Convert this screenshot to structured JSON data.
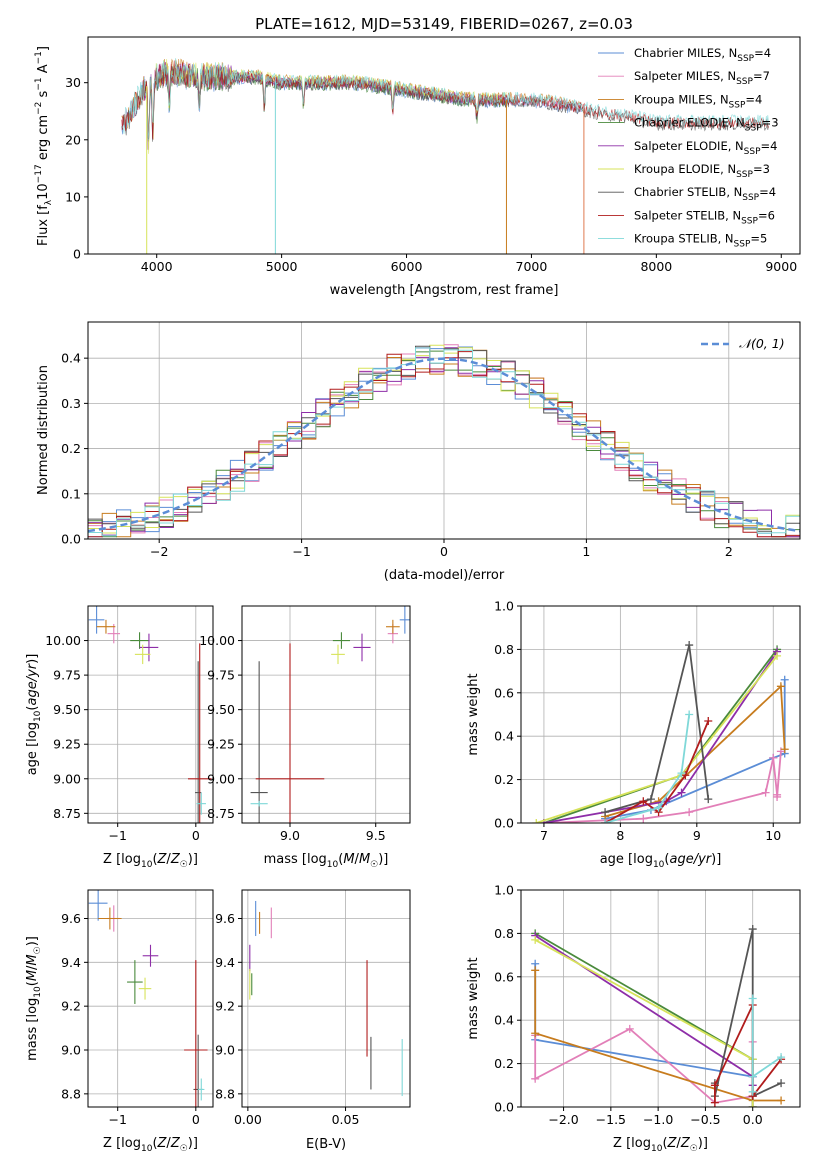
{
  "title": "PLATE=1612, MJD=53149, FIBERID=0267, z=0.03",
  "colors": {
    "Chabrier MILES": "#5b8dd6",
    "Salpeter MILES": "#e27fb8",
    "Kroupa MILES": "#c77c1e",
    "Chabrier ELODIE": "#4a8a3c",
    "Salpeter ELODIE": "#8e2ea8",
    "Kroupa ELODIE": "#d7e35a",
    "Chabrier STELIB": "#555555",
    "Salpeter STELIB": "#b01c1c",
    "Kroupa STELIB": "#7fd8d8"
  },
  "chart_data": [
    {
      "id": "spectrum",
      "type": "line",
      "title": "PLATE=1612, MJD=53149, FIBERID=0267, z=0.03",
      "xlabel": "wavelength [Angstrom, rest frame]",
      "ylabel": "Flux [f_λ 10^-17 erg cm^-2 s^-1 A^-1]",
      "xlim": [
        3450,
        9150
      ],
      "ylim": [
        0,
        38
      ],
      "xticks": [
        4000,
        5000,
        6000,
        7000,
        8000,
        9000
      ],
      "yticks": [
        0,
        10,
        20,
        30
      ],
      "grid": false,
      "legend_position": "top-right",
      "x": [
        3720,
        3800,
        3900,
        4000,
        4100,
        4300,
        4500,
        4800,
        5000,
        5300,
        5600,
        5900,
        6200,
        6500,
        6800,
        7000,
        7300,
        7500,
        7800,
        8000,
        8300,
        8600,
        8900
      ],
      "data_flux": [
        22,
        25,
        29,
        31,
        32,
        31,
        31,
        31,
        30,
        30,
        30,
        29,
        28,
        27,
        27,
        27,
        26,
        25,
        24,
        23,
        23,
        23,
        23
      ],
      "series": [
        {
          "name": "Chabrier MILES, N_SSP=4",
          "label": "Chabrier MILES, N",
          "sub": "SSP",
          "suffix": "=4",
          "color": "#5b8dd6",
          "range": [
            3720,
            7400
          ]
        },
        {
          "name": "Salpeter MILES, N_SSP=7",
          "label": "Salpeter MILES, N",
          "sub": "SSP",
          "suffix": "=7",
          "color": "#e27fb8",
          "range": [
            3720,
            7400
          ]
        },
        {
          "name": "Kroupa MILES, N_SSP=4",
          "label": "Kroupa MILES, N",
          "sub": "SSP",
          "suffix": "=4",
          "color": "#c77c1e",
          "range": [
            3720,
            7400
          ]
        },
        {
          "name": "Chabrier ELODIE, N_SSP=3",
          "label": "Chabrier ELODIE, N",
          "sub": "SSP",
          "suffix": "=3",
          "color": "#4a8a3c",
          "range": [
            3900,
            6800
          ]
        },
        {
          "name": "Salpeter ELODIE, N_SSP=4",
          "label": "Salpeter ELODIE, N",
          "sub": "SSP",
          "suffix": "=4",
          "color": "#8e2ea8",
          "range": [
            3900,
            6800
          ]
        },
        {
          "name": "Kroupa ELODIE, N_SSP=3",
          "label": "Kroupa ELODIE, N",
          "sub": "SSP",
          "suffix": "=3",
          "color": "#d7e35a",
          "range": [
            3900,
            6800
          ]
        },
        {
          "name": "Chabrier STELIB, N_SSP=4",
          "label": "Chabrier STELIB, N",
          "sub": "SSP",
          "suffix": "=4",
          "color": "#555555",
          "range": [
            3720,
            8900
          ]
        },
        {
          "name": "Salpeter STELIB, N_SSP=6",
          "label": "Salpeter STELIB, N",
          "sub": "SSP",
          "suffix": "=6",
          "color": "#b01c1c",
          "range": [
            3720,
            8900
          ]
        },
        {
          "name": "Kroupa STELIB, N_SSP=5",
          "label": "Kroupa STELIB, N",
          "sub": "SSP",
          "suffix": "=5",
          "color": "#7fd8d8",
          "range": [
            3720,
            8900
          ]
        }
      ],
      "drops_to_zero": [
        {
          "x": 3920,
          "color": "#d7e35a"
        },
        {
          "x": 4950,
          "color": "#7fd8d8"
        },
        {
          "x": 6800,
          "color": "#c77c1e"
        },
        {
          "x": 7420,
          "color": "#e07a50"
        }
      ]
    },
    {
      "id": "residuals",
      "type": "line",
      "xlabel": "(data-model)/error",
      "ylabel": "Normed distribution",
      "xlim": [
        -2.5,
        2.5
      ],
      "ylim": [
        0,
        0.48
      ],
      "xticks": [
        -2,
        -1,
        0,
        1,
        2
      ],
      "yticks": [
        0.0,
        0.1,
        0.2,
        0.3,
        0.4
      ],
      "grid": true,
      "legend_position": "top-right",
      "reference": {
        "name": "𝒩(0, 1)",
        "color": "#5b8dd6",
        "style": "dashed"
      },
      "bin_width": 0.1
    },
    {
      "id": "age_vs_Z",
      "type": "scatter",
      "xlabel": "Z [log10(Z/Z☉)]",
      "ylabel": "age  [log10(age/yr)]",
      "xlim": [
        -1.38,
        0.22
      ],
      "ylim": [
        8.68,
        10.25
      ],
      "xticks": [
        -1,
        0
      ],
      "yticks": [
        8.75,
        9.0,
        9.25,
        9.5,
        9.75,
        10.0
      ],
      "grid": true,
      "points": [
        {
          "color": "#5b8dd6",
          "x": -1.27,
          "xerr": 0.1,
          "y": 10.15,
          "yerr": 0.1
        },
        {
          "color": "#e27fb8",
          "x": -1.05,
          "xerr": 0.08,
          "y": 10.05,
          "yerr": 0.07
        },
        {
          "color": "#c77c1e",
          "x": -1.15,
          "xerr": 0.12,
          "y": 10.1,
          "yerr": 0.05
        },
        {
          "color": "#4a8a3c",
          "x": -0.72,
          "xerr": 0.12,
          "y": 10.0,
          "yerr": 0.06
        },
        {
          "color": "#8e2ea8",
          "x": -0.6,
          "xerr": 0.12,
          "y": 9.95,
          "yerr": 0.1
        },
        {
          "color": "#d7e35a",
          "x": -0.68,
          "xerr": 0.1,
          "y": 9.9,
          "yerr": 0.07
        },
        {
          "color": "#555555",
          "x": 0.03,
          "xerr": 0.04,
          "y": 8.9,
          "yerr": 0.95
        },
        {
          "color": "#b01c1c",
          "x": 0.05,
          "xerr": 0.15,
          "y": 9.0,
          "yerr": 0.98
        },
        {
          "color": "#7fd8d8",
          "x": 0.07,
          "xerr": 0.06,
          "y": 8.82,
          "yerr": 0.08
        }
      ]
    },
    {
      "id": "age_vs_mass",
      "type": "scatter",
      "xlabel": "mass [log10(M/M☉)]",
      "ylabel": "",
      "xlim": [
        8.72,
        9.7
      ],
      "ylim": [
        8.68,
        10.25
      ],
      "xticks": [
        9.0,
        9.5
      ],
      "yticks": [
        8.75,
        9.0,
        9.25,
        9.5,
        9.75,
        10.0
      ],
      "grid": true,
      "points": [
        {
          "color": "#5b8dd6",
          "x": 9.67,
          "xerr": 0.03,
          "y": 10.15,
          "yerr": 0.1
        },
        {
          "color": "#e27fb8",
          "x": 9.6,
          "xerr": 0.03,
          "y": 10.05,
          "yerr": 0.07
        },
        {
          "color": "#c77c1e",
          "x": 9.6,
          "xerr": 0.04,
          "y": 10.1,
          "yerr": 0.05
        },
        {
          "color": "#4a8a3c",
          "x": 9.3,
          "xerr": 0.05,
          "y": 10.0,
          "yerr": 0.06
        },
        {
          "color": "#8e2ea8",
          "x": 9.42,
          "xerr": 0.05,
          "y": 9.95,
          "yerr": 0.1
        },
        {
          "color": "#d7e35a",
          "x": 9.28,
          "xerr": 0.04,
          "y": 9.9,
          "yerr": 0.07
        },
        {
          "color": "#555555",
          "x": 8.82,
          "xerr": 0.05,
          "y": 8.9,
          "yerr": 0.95
        },
        {
          "color": "#b01c1c",
          "x": 9.0,
          "xerr": 0.2,
          "y": 9.0,
          "yerr": 0.98
        },
        {
          "color": "#7fd8d8",
          "x": 8.82,
          "xerr": 0.05,
          "y": 8.82,
          "yerr": 0.02
        }
      ]
    },
    {
      "id": "weight_vs_age",
      "type": "line",
      "xlabel": "age  [log10(age/yr)]",
      "ylabel": "mass weight",
      "xlim": [
        6.7,
        10.35
      ],
      "ylim": [
        0,
        1.0
      ],
      "xticks": [
        7,
        8,
        9,
        10
      ],
      "yticks": [
        0.0,
        0.2,
        0.4,
        0.6,
        0.8,
        1.0
      ],
      "grid": true,
      "series": [
        {
          "name": "Chabrier MILES",
          "color": "#5b8dd6",
          "points": [
            [
              7.8,
              0.02
            ],
            [
              8.4,
              0.06
            ],
            [
              10.0,
              0.3
            ],
            [
              10.15,
              0.32
            ],
            [
              10.15,
              0.66
            ]
          ]
        },
        {
          "name": "Salpeter MILES",
          "color": "#e27fb8",
          "points": [
            [
              7.0,
              0.0
            ],
            [
              8.3,
              0.02
            ],
            [
              8.9,
              0.05
            ],
            [
              9.9,
              0.14
            ],
            [
              10.0,
              0.3
            ],
            [
              10.05,
              0.13
            ],
            [
              10.1,
              0.33
            ],
            [
              10.05,
              0.12
            ]
          ]
        },
        {
          "name": "Kroupa MILES",
          "color": "#c77c1e",
          "points": [
            [
              7.8,
              0.03
            ],
            [
              8.5,
              0.1
            ],
            [
              10.1,
              0.63
            ],
            [
              10.15,
              0.34
            ]
          ]
        },
        {
          "name": "Chabrier ELODIE",
          "color": "#4a8a3c",
          "points": [
            [
              7.0,
              0.0
            ],
            [
              8.8,
              0.22
            ],
            [
              10.05,
              0.8
            ]
          ]
        },
        {
          "name": "Salpeter ELODIE",
          "color": "#8e2ea8",
          "points": [
            [
              7.0,
              0.0
            ],
            [
              8.6,
              0.1
            ],
            [
              8.8,
              0.14
            ],
            [
              10.05,
              0.79
            ]
          ]
        },
        {
          "name": "Kroupa ELODIE",
          "color": "#d7e35a",
          "points": [
            [
              6.9,
              0.0
            ],
            [
              8.8,
              0.22
            ],
            [
              10.05,
              0.77
            ]
          ]
        },
        {
          "name": "Chabrier STELIB",
          "color": "#555555",
          "points": [
            [
              7.8,
              0.05
            ],
            [
              8.4,
              0.11
            ],
            [
              8.9,
              0.82
            ],
            [
              9.15,
              0.11
            ]
          ]
        },
        {
          "name": "Salpeter STELIB",
          "color": "#b01c1c",
          "points": [
            [
              7.8,
              0.0
            ],
            [
              8.3,
              0.1
            ],
            [
              8.5,
              0.05
            ],
            [
              8.85,
              0.22
            ],
            [
              9.15,
              0.47
            ]
          ]
        },
        {
          "name": "Kroupa STELIB",
          "color": "#7fd8d8",
          "points": [
            [
              7.8,
              0.0
            ],
            [
              8.5,
              0.07
            ],
            [
              8.8,
              0.23
            ],
            [
              8.9,
              0.5
            ]
          ]
        }
      ]
    },
    {
      "id": "mass_vs_Z",
      "type": "scatter",
      "xlabel": "Z [log10(Z/Z☉)]",
      "ylabel": "mass [log10(M/M☉)]",
      "xlim": [
        -1.38,
        0.22
      ],
      "ylim": [
        8.74,
        9.73
      ],
      "xticks": [
        -1,
        0
      ],
      "yticks": [
        8.8,
        9.0,
        9.2,
        9.4,
        9.6
      ],
      "grid": true,
      "points": [
        {
          "color": "#5b8dd6",
          "x": -1.25,
          "xerr": 0.12,
          "y": 9.67,
          "yerr": 0.08
        },
        {
          "color": "#e27fb8",
          "x": -1.05,
          "xerr": 0.08,
          "y": 9.6,
          "yerr": 0.06
        },
        {
          "color": "#c77c1e",
          "x": -1.1,
          "xerr": 0.15,
          "y": 9.6,
          "yerr": 0.05
        },
        {
          "color": "#4a8a3c",
          "x": -0.78,
          "xerr": 0.1,
          "y": 9.31,
          "yerr": 0.1
        },
        {
          "color": "#8e2ea8",
          "x": -0.58,
          "xerr": 0.1,
          "y": 9.43,
          "yerr": 0.05
        },
        {
          "color": "#d7e35a",
          "x": -0.65,
          "xerr": 0.08,
          "y": 9.28,
          "yerr": 0.05
        },
        {
          "color": "#555555",
          "x": 0.03,
          "xerr": 0.06,
          "y": 8.82,
          "yerr": 0.25
        },
        {
          "color": "#b01c1c",
          "x": 0.0,
          "xerr": 0.15,
          "y": 9.0,
          "yerr": 0.41
        },
        {
          "color": "#7fd8d8",
          "x": 0.07,
          "xerr": 0.04,
          "y": 8.82,
          "yerr": 0.05
        }
      ]
    },
    {
      "id": "mass_vs_ebv",
      "type": "scatter",
      "xlabel": "E(B-V)",
      "ylabel": "",
      "xlim": [
        -0.003,
        0.083
      ],
      "ylim": [
        8.74,
        9.73
      ],
      "xticks": [
        0.0,
        0.05
      ],
      "yticks": [
        8.8,
        9.0,
        9.2,
        9.4,
        9.6
      ],
      "grid": true,
      "points": [
        {
          "color": "#5b8dd6",
          "x": 0.004,
          "y": 9.6,
          "yerr": 0.08
        },
        {
          "color": "#e27fb8",
          "x": 0.012,
          "y": 9.58,
          "yerr": 0.07
        },
        {
          "color": "#c77c1e",
          "x": 0.006,
          "y": 9.58,
          "yerr": 0.05
        },
        {
          "color": "#4a8a3c",
          "x": 0.002,
          "y": 9.3,
          "yerr": 0.05
        },
        {
          "color": "#8e2ea8",
          "x": 0.001,
          "y": 9.42,
          "yerr": 0.06
        },
        {
          "color": "#d7e35a",
          "x": 0.001,
          "y": 9.3,
          "yerr": 0.07
        },
        {
          "color": "#555555",
          "x": 0.063,
          "y": 8.94,
          "yerr": 0.12
        },
        {
          "color": "#b01c1c",
          "x": 0.061,
          "y": 9.19,
          "yerr": 0.22
        },
        {
          "color": "#7fd8d8",
          "x": 0.079,
          "y": 8.92,
          "yerr": 0.13
        }
      ]
    },
    {
      "id": "weight_vs_Z",
      "type": "line",
      "xlabel": "Z [log10(Z/Z☉)]",
      "ylabel": "mass weight",
      "xlim": [
        -2.45,
        0.5
      ],
      "ylim": [
        0,
        1.0
      ],
      "xticks": [
        -2.0,
        -1.5,
        -1.0,
        -0.5,
        0.0
      ],
      "yticks": [
        0.0,
        0.2,
        0.4,
        0.6,
        0.8,
        1.0
      ],
      "grid": true,
      "series": [
        {
          "name": "Chabrier MILES",
          "color": "#5b8dd6",
          "points": [
            [
              -2.3,
              0.66
            ],
            [
              -2.3,
              0.31
            ],
            [
              0.0,
              0.14
            ],
            [
              0.0,
              0.0
            ]
          ]
        },
        {
          "name": "Salpeter MILES",
          "color": "#e27fb8",
          "points": [
            [
              -2.3,
              0.33
            ],
            [
              -2.3,
              0.13
            ],
            [
              -1.3,
              0.36
            ],
            [
              -0.4,
              0.02
            ],
            [
              0.0,
              0.05
            ],
            [
              0.0,
              0.3
            ],
            [
              0.0,
              0.0
            ]
          ]
        },
        {
          "name": "Kroupa MILES",
          "color": "#c77c1e",
          "points": [
            [
              -2.3,
              0.63
            ],
            [
              -2.3,
              0.34
            ],
            [
              0.0,
              0.03
            ],
            [
              0.3,
              0.03
            ]
          ]
        },
        {
          "name": "Chabrier ELODIE",
          "color": "#4a8a3c",
          "points": [
            [
              -2.3,
              0.8
            ],
            [
              0.0,
              0.22
            ],
            [
              0.0,
              0.0
            ]
          ]
        },
        {
          "name": "Salpeter ELODIE",
          "color": "#8e2ea8",
          "points": [
            [
              -2.3,
              0.79
            ],
            [
              0.0,
              0.14
            ],
            [
              0.0,
              0.1
            ]
          ]
        },
        {
          "name": "Kroupa ELODIE",
          "color": "#d7e35a",
          "points": [
            [
              -2.3,
              0.77
            ],
            [
              0.0,
              0.22
            ],
            [
              0.0,
              0.0
            ]
          ]
        },
        {
          "name": "Chabrier STELIB",
          "color": "#555555",
          "points": [
            [
              -0.4,
              0.11
            ],
            [
              -0.4,
              0.05
            ],
            [
              0.0,
              0.82
            ],
            [
              0.0,
              0.05
            ],
            [
              0.3,
              0.11
            ]
          ]
        },
        {
          "name": "Salpeter STELIB",
          "color": "#b01c1c",
          "points": [
            [
              -0.4,
              0.02
            ],
            [
              -0.4,
              0.1
            ],
            [
              0.0,
              0.47
            ],
            [
              0.0,
              0.05
            ],
            [
              0.3,
              0.22
            ]
          ]
        },
        {
          "name": "Kroupa STELIB",
          "color": "#7fd8d8",
          "points": [
            [
              0.0,
              0.5
            ],
            [
              0.0,
              0.07
            ],
            [
              0.0,
              0.14
            ],
            [
              0.3,
              0.23
            ]
          ]
        }
      ]
    }
  ]
}
